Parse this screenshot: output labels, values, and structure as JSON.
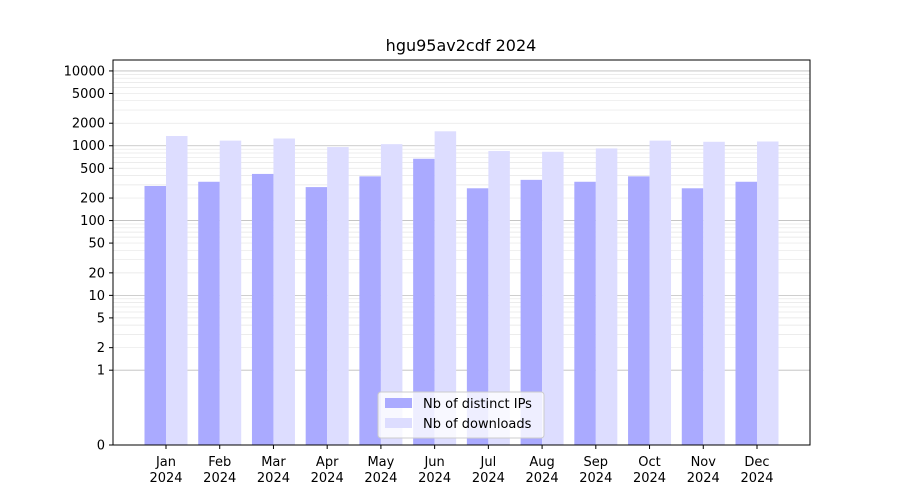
{
  "chart_data": {
    "type": "bar",
    "title": "hgu95av2cdf 2024",
    "xlabel": "",
    "ylabel": "",
    "y_scale": "symlog",
    "ylim": [
      0,
      14000
    ],
    "y_ticks": [
      0,
      1,
      2,
      5,
      10,
      20,
      50,
      100,
      200,
      500,
      1000,
      2000,
      5000,
      10000
    ],
    "y_tick_labels": [
      "0",
      "1",
      "2",
      "5",
      "10",
      "20",
      "50",
      "100",
      "200",
      "500",
      "1000",
      "2000",
      "5000",
      "10000"
    ],
    "grid": true,
    "legend_position": "bottom-center",
    "categories": [
      "Jan",
      "Feb",
      "Mar",
      "Apr",
      "May",
      "Jun",
      "Jul",
      "Aug",
      "Sep",
      "Oct",
      "Nov",
      "Dec"
    ],
    "category_sublabels": [
      "2024",
      "2024",
      "2024",
      "2024",
      "2024",
      "2024",
      "2024",
      "2024",
      "2024",
      "2024",
      "2024",
      "2024"
    ],
    "series": [
      {
        "name": "Nb of distinct IPs",
        "color": "#aaaaff",
        "values": [
          290,
          330,
          420,
          280,
          390,
          670,
          270,
          350,
          330,
          390,
          270,
          330
        ]
      },
      {
        "name": "Nb of downloads",
        "color": "#ddddff",
        "values": [
          1350,
          1170,
          1250,
          960,
          1050,
          1560,
          850,
          830,
          920,
          1170,
          1130,
          1140
        ]
      }
    ]
  }
}
